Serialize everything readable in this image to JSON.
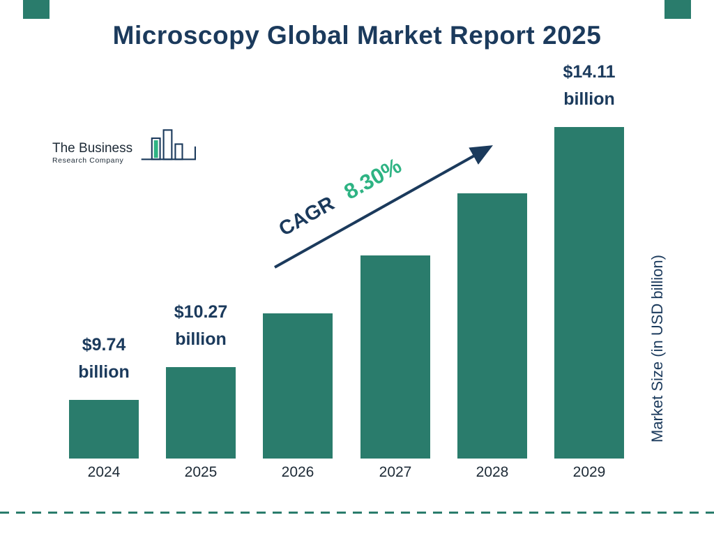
{
  "page": {
    "title": "Microscopy Global Market Report 2025"
  },
  "logo": {
    "line1": "The Business",
    "line2": "Research Company"
  },
  "cagr": {
    "label": "CAGR",
    "value": "8.30%"
  },
  "colors": {
    "navy": "#1b3a5c",
    "teal_bar": "#2a7c6c",
    "green_accent": "#2eb383"
  },
  "chart_data": {
    "type": "bar",
    "title": "Microscopy Global Market Report 2025",
    "categories": [
      "2024",
      "2025",
      "2026",
      "2027",
      "2028",
      "2029"
    ],
    "values": [
      9.74,
      10.27,
      11.12,
      12.05,
      13.05,
      14.11
    ],
    "value_labels": [
      {
        "index": 0,
        "amount": "$9.74",
        "unit": "billion"
      },
      {
        "index": 1,
        "amount": "$10.27",
        "unit": "billion"
      },
      {
        "index": 5,
        "amount": "$14.11",
        "unit": "billion"
      }
    ],
    "xlabel": "",
    "ylabel": "Market Size (in USD billion)",
    "cagr": "8.30%",
    "ylim": [
      8.8,
      14.2
    ],
    "grid": false,
    "legend": false
  }
}
